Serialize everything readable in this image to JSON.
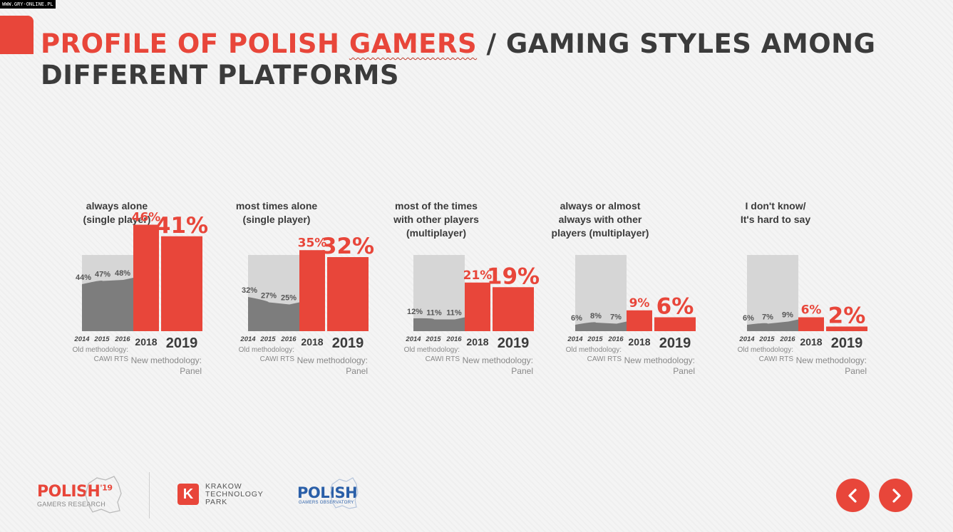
{
  "source_tag": "WWW.GRY-ONLINE.PL",
  "title": {
    "part_red_1": "PROFILE OF POLISH ",
    "part_red_2": "GAMERS",
    "part_dark": " / GAMING STYLES AMONG DIFFERENT PLATFORMS"
  },
  "colors": {
    "accent": "#e8463a",
    "dark_text": "#3b3b3b",
    "area": "#7d7d7d",
    "panel": "#d6d6d6",
    "blue_logo": "#2a5fa8"
  },
  "chart_data": [
    {
      "type": "area+bar",
      "title": "always alone\n(single player)",
      "old": {
        "x": [
          "2014",
          "2015",
          "2016"
        ],
        "values": [
          44,
          47,
          48
        ],
        "labels": [
          "44%",
          "47%",
          "48%"
        ],
        "methodology": [
          "Old methodology:",
          "CAWI RTS"
        ]
      },
      "new": {
        "x": [
          "2018",
          "2019"
        ],
        "values": [
          46,
          41
        ],
        "labels": [
          "46%",
          "41%"
        ],
        "methodology": [
          "New methodology:",
          "Panel"
        ]
      }
    },
    {
      "type": "area+bar",
      "title": "most times alone\n(single player)",
      "old": {
        "x": [
          "2014",
          "2015",
          "2016"
        ],
        "values": [
          32,
          27,
          25
        ],
        "labels": [
          "32%",
          "27%",
          "25%"
        ],
        "methodology": [
          "Old methodology:",
          "CAWI RTS"
        ]
      },
      "new": {
        "x": [
          "2018",
          "2019"
        ],
        "values": [
          35,
          32
        ],
        "labels": [
          "35%",
          "32%"
        ],
        "methodology": [
          "New methodology:",
          "Panel"
        ]
      }
    },
    {
      "type": "area+bar",
      "title": "most of the times\nwith other players\n(multiplayer)",
      "old": {
        "x": [
          "2014",
          "2015",
          "2016"
        ],
        "values": [
          12,
          11,
          11
        ],
        "labels": [
          "12%",
          "11%",
          "11%"
        ],
        "methodology": [
          "Old methodology:",
          "CAWI RTS"
        ]
      },
      "new": {
        "x": [
          "2018",
          "2019"
        ],
        "values": [
          21,
          19
        ],
        "labels": [
          "21%",
          "19%"
        ],
        "methodology": [
          "New methodology:",
          "Panel"
        ]
      }
    },
    {
      "type": "area+bar",
      "title": "always or almost\nalways with other\nplayers (multiplayer)",
      "old": {
        "x": [
          "2014",
          "2015",
          "2016"
        ],
        "values": [
          6,
          8,
          7
        ],
        "labels": [
          "6%",
          "8%",
          "7%"
        ],
        "methodology": [
          "Old methodology:",
          "CAWI RTS"
        ]
      },
      "new": {
        "x": [
          "2018",
          "2019"
        ],
        "values": [
          9,
          6
        ],
        "labels": [
          "9%",
          "6%"
        ],
        "methodology": [
          "New methodology:",
          "Panel"
        ]
      }
    },
    {
      "type": "area+bar",
      "title": "I don't know/\nIt's hard to say",
      "old": {
        "x": [
          "2014",
          "2015",
          "2016"
        ],
        "values": [
          6,
          7,
          9
        ],
        "labels": [
          "6%",
          "7%",
          "9%"
        ],
        "methodology": [
          "Old methodology:",
          "CAWI RTS"
        ]
      },
      "new": {
        "x": [
          "2018",
          "2019"
        ],
        "values": [
          6,
          2
        ],
        "labels": [
          "6%",
          "2%"
        ],
        "methodology": [
          "New methodology:",
          "Panel"
        ]
      }
    }
  ],
  "footer": {
    "logo1_main": "POLISH",
    "logo1_sup": "'19",
    "logo1_sub": "GAMERS RESEARCH",
    "ktp_letter": "K",
    "ktp_lines": [
      "KRAKOW",
      "TECHNOLOGY",
      "PARK"
    ],
    "logo3_main": "POLISH",
    "logo3_sub": "GAMERS OBSERVATORY",
    "icons": [
      "poland-map-icon",
      "chevron-left-icon",
      "chevron-right-icon"
    ]
  }
}
